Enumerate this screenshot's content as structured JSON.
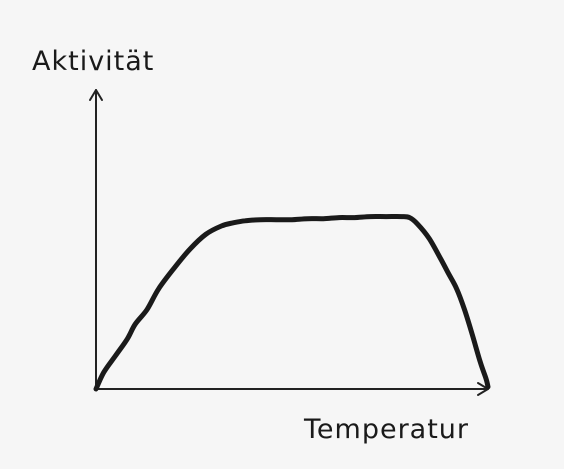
{
  "chart_data": {
    "type": "line",
    "title": "",
    "xlabel": "Temperatur",
    "ylabel": "Aktivität",
    "xlim": [
      0,
      100
    ],
    "ylim": [
      0,
      100
    ],
    "grid": false,
    "series": [
      {
        "x": [
          0,
          2,
          5,
          8,
          10,
          13,
          16,
          20,
          24,
          28,
          32,
          35,
          38,
          42,
          46,
          50,
          54,
          58,
          62,
          66,
          70,
          74,
          78,
          80,
          82,
          85,
          88,
          90,
          92,
          94,
          96,
          98,
          99.5,
          100
        ],
        "values": [
          0,
          8,
          16,
          24,
          31,
          38,
          48,
          58,
          67,
          74,
          78,
          79.5,
          80.5,
          81,
          81,
          81,
          81.5,
          81.5,
          82,
          82,
          82.5,
          82.5,
          82.5,
          82,
          79,
          72,
          62,
          55,
          48,
          38,
          26,
          13,
          5,
          1
        ]
      }
    ]
  }
}
